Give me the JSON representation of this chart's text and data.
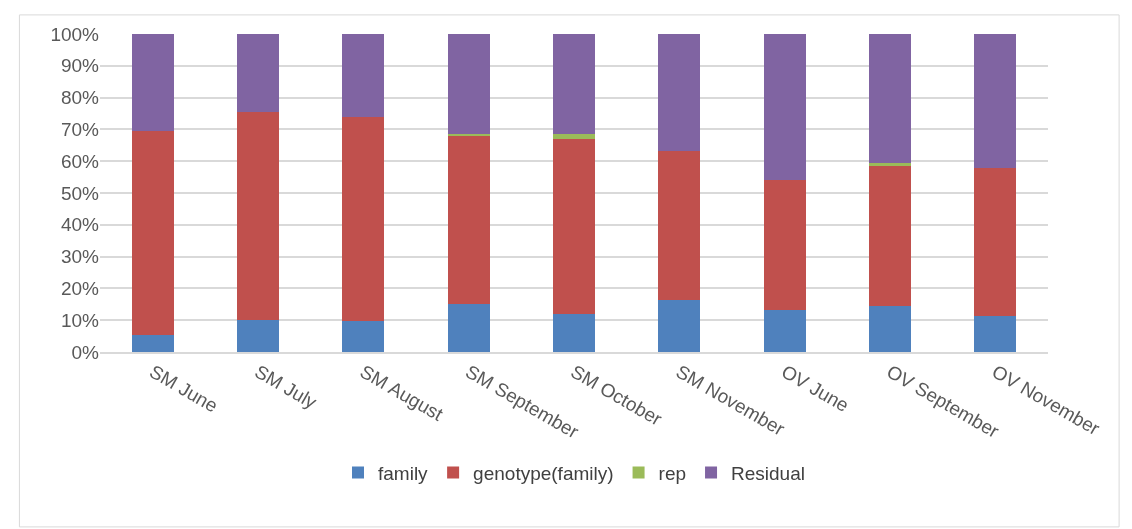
{
  "chart_data": {
    "type": "bar",
    "stacked": true,
    "categories": [
      "SM June",
      "SM July",
      "SM August",
      "SM September",
      "SM October",
      "SM November",
      "OV June",
      "OV September",
      "OV November"
    ],
    "series": [
      {
        "name": "family",
        "color": "#4f81bd",
        "values": [
          5.5,
          10.2,
          9.7,
          15.2,
          12.0,
          16.5,
          13.3,
          14.5,
          11.4
        ]
      },
      {
        "name": "genotype(family)",
        "color": "#c0504d",
        "values": [
          64.1,
          65.2,
          64.1,
          52.8,
          55.1,
          46.6,
          40.7,
          44.1,
          46.4
        ]
      },
      {
        "name": "rep",
        "color": "#9bbb59",
        "values": [
          0,
          0,
          0,
          0.6,
          1.3,
          0,
          0,
          0.9,
          0
        ]
      },
      {
        "name": "Residual",
        "color": "#8064a2",
        "values": [
          30.4,
          24.6,
          26.2,
          31.4,
          31.6,
          36.9,
          46.0,
          40.5,
          42.2
        ]
      }
    ],
    "ylim": [
      0,
      100
    ],
    "yticks": [
      {
        "value": 0,
        "label": "0%"
      },
      {
        "value": 10,
        "label": "10%"
      },
      {
        "value": 20,
        "label": "20%"
      },
      {
        "value": 30,
        "label": "30%"
      },
      {
        "value": 40,
        "label": "40%"
      },
      {
        "value": 50,
        "label": "50%"
      },
      {
        "value": 60,
        "label": "60%"
      },
      {
        "value": 70,
        "label": "70%"
      },
      {
        "value": 80,
        "label": "80%"
      },
      {
        "value": 90,
        "label": "90%"
      },
      {
        "value": 100,
        "label": "100%"
      }
    ],
    "grid": "y",
    "legend": "bottom"
  }
}
